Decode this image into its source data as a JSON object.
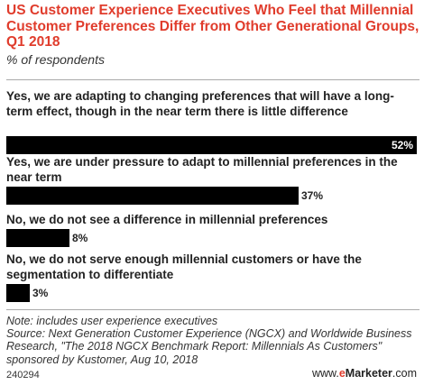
{
  "chart_data": {
    "type": "bar",
    "orientation": "horizontal",
    "title": "US Customer Experience Executives Who Feel that Millennial Customer Preferences Differ from Other Generational Groups, Q1 2018",
    "subtitle": "% of respondents",
    "categories": [
      "Yes, we are adapting to changing preferences that will have a long-term effect, though in the near term there is little difference",
      "Yes, we are under pressure to adapt to millennial preferences in the near term",
      "No, we do not see a difference in millennial preferences",
      "No, we do not serve enough millennial customers or have the segmentation to differentiate"
    ],
    "values": [
      52,
      37,
      8,
      3
    ],
    "value_labels": [
      "52%",
      "37%",
      "8%",
      "3%"
    ],
    "xlim": [
      0,
      52
    ],
    "bar_color": "#000000",
    "grid": false
  },
  "colors": {
    "title": "#e03c2c",
    "bar": "#000000",
    "brand_accent": "#e03c2c"
  },
  "footer": {
    "note": "Note: includes user experience executives",
    "source": "Source: Next Generation Customer Experience (NGCX) and Worldwide Business Research, \"The 2018 NGCX Benchmark Report: Millennials As Customers\" sponsored by Kustomer, Aug 10, 2018",
    "chart_id": "240294",
    "brand_prefix": "www.",
    "brand_e": "e",
    "brand_name": "Marketer",
    "brand_suffix": ".com"
  }
}
